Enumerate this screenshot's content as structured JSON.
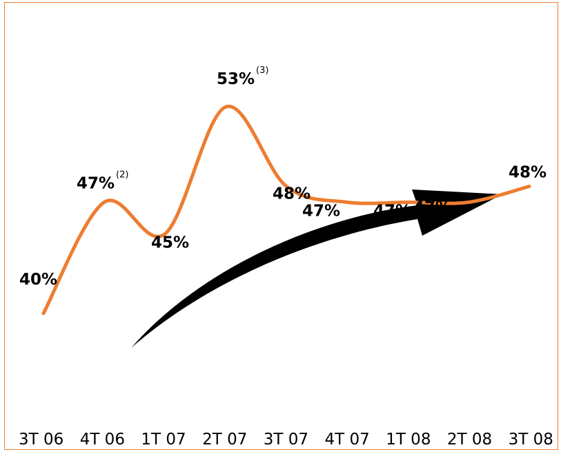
{
  "chart_data": {
    "type": "line",
    "title": "",
    "xlabel": "",
    "ylabel": "",
    "categories": [
      "3T 06",
      "4T 06",
      "1T 07",
      "2T 07",
      "3T 07",
      "4T 07",
      "1T 08",
      "2T 08",
      "3T 08"
    ],
    "series": [
      {
        "values": [
          40,
          47,
          45,
          53,
          48,
          47,
          47,
          47,
          48
        ],
        "labels": [
          "40%",
          "47%",
          "45%",
          "53%",
          "48%",
          "47%",
          "47%",
          "47%",
          "48%"
        ],
        "footnotes": [
          "",
          "(2)",
          "",
          "(3)",
          "",
          "",
          "",
          "",
          ""
        ]
      }
    ],
    "ylim": [
      35,
      58
    ],
    "grid": false,
    "legend": "none",
    "line_color": "#ed7d31",
    "arrow_color": "#000000"
  }
}
